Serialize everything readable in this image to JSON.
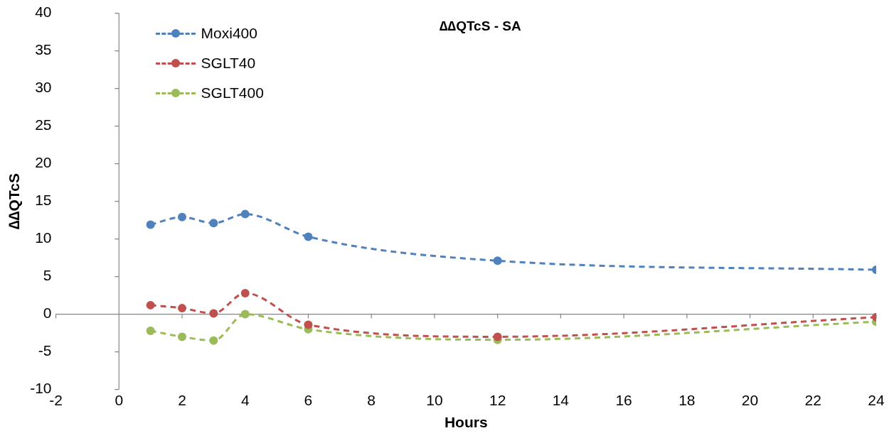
{
  "chart_data": {
    "type": "line",
    "title": "∆∆QTcS - SA",
    "xlabel": "Hours",
    "ylabel": "∆∆QTcS",
    "x": [
      1,
      2,
      3,
      4,
      6,
      12,
      24
    ],
    "series": [
      {
        "name": "Moxi400",
        "color": "#4f81bd",
        "values": [
          11.9,
          12.9,
          12.1,
          13.3,
          10.3,
          7.1,
          5.9
        ]
      },
      {
        "name": "SGLT40",
        "color": "#c0504d",
        "values": [
          1.2,
          0.8,
          0.1,
          2.8,
          -1.4,
          -3.0,
          -0.4
        ]
      },
      {
        "name": "SGLT400",
        "color": "#9bbb59",
        "values": [
          -2.2,
          -3.0,
          -3.5,
          0,
          -2.0,
          -3.4,
          -1.0
        ]
      }
    ],
    "xlim": [
      -2,
      24
    ],
    "xticks": [
      -2,
      0,
      2,
      4,
      6,
      8,
      10,
      12,
      14,
      16,
      18,
      20,
      22,
      24
    ],
    "ylim": [
      -10,
      40
    ],
    "yticks": [
      -10,
      -5,
      0,
      5,
      10,
      15,
      20,
      25,
      30,
      35,
      40
    ],
    "legend": "top left",
    "marker": "circle",
    "line_style": "dashed"
  }
}
